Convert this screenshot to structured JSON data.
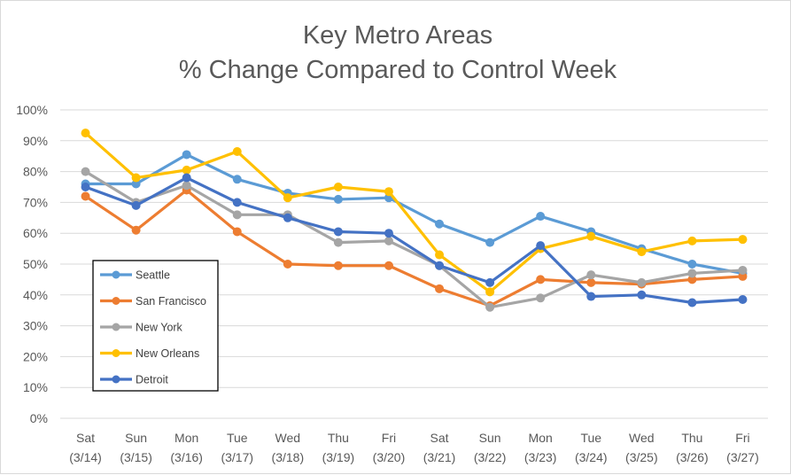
{
  "chart_data": {
    "type": "line",
    "title": [
      "Key Metro Areas",
      "% Change Compared to Control Week"
    ],
    "xlabel": "",
    "ylabel": "",
    "categories": [
      [
        "Sat",
        "(3/14)"
      ],
      [
        "Sun",
        "(3/15)"
      ],
      [
        "Mon",
        "(3/16)"
      ],
      [
        "Tue",
        "(3/17)"
      ],
      [
        "Wed",
        "(3/18)"
      ],
      [
        "Thu",
        "(3/19)"
      ],
      [
        "Fri",
        "(3/20)"
      ],
      [
        "Sat",
        "(3/21)"
      ],
      [
        "Sun",
        "(3/22)"
      ],
      [
        "Mon",
        "(3/23)"
      ],
      [
        "Tue",
        "(3/24)"
      ],
      [
        "Wed",
        "(3/25)"
      ],
      [
        "Thu",
        "(3/26)"
      ],
      [
        "Fri",
        "(3/27)"
      ]
    ],
    "ylim": [
      0,
      100
    ],
    "yticks": [
      0,
      10,
      20,
      30,
      40,
      50,
      60,
      70,
      80,
      90,
      100
    ],
    "ytick_labels": [
      "0%",
      "10%",
      "20%",
      "30%",
      "40%",
      "50%",
      "60%",
      "70%",
      "80%",
      "90%",
      "100%"
    ],
    "grid": true,
    "legend_position": "lower-left",
    "series": [
      {
        "name": "Seattle",
        "color": "#5B9BD5",
        "values": [
          76,
          76,
          85.5,
          77.5,
          73,
          71,
          71.5,
          63,
          57,
          65.5,
          60.5,
          55,
          50,
          47
        ]
      },
      {
        "name": "San Francisco",
        "color": "#ED7D31",
        "values": [
          72,
          61,
          74,
          60.5,
          50,
          49.5,
          49.5,
          42,
          36.5,
          45,
          44,
          43.5,
          45,
          46
        ]
      },
      {
        "name": "New York",
        "color": "#A5A5A5",
        "values": [
          80,
          70,
          75.5,
          66,
          66,
          57,
          57.5,
          49.5,
          36,
          39,
          46.5,
          44,
          47,
          48
        ]
      },
      {
        "name": "New Orleans",
        "color": "#FFC000",
        "values": [
          92.5,
          78,
          80.5,
          86.5,
          71.5,
          75,
          73.5,
          53,
          41,
          55,
          59,
          54,
          57.5,
          58
        ]
      },
      {
        "name": "Detroit",
        "color": "#4472C4",
        "values": [
          75,
          69,
          78,
          70,
          65,
          60.5,
          60,
          49.5,
          44,
          56,
          39.5,
          40,
          37.5,
          38.5
        ]
      }
    ]
  }
}
